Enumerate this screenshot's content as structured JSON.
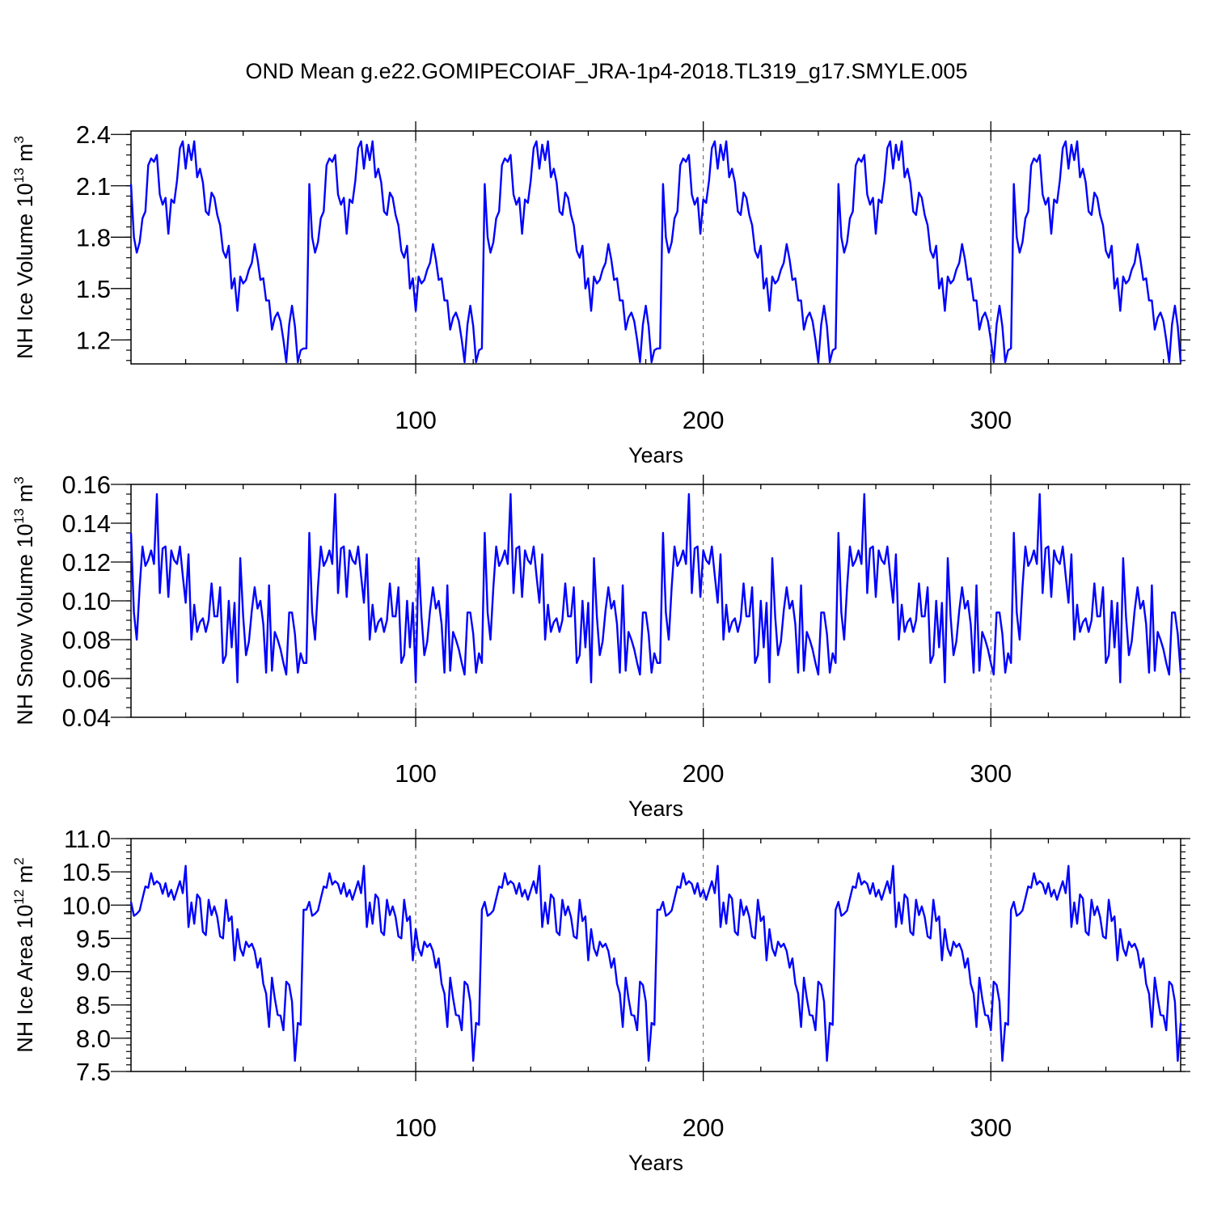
{
  "figure": {
    "title": "OND Mean g.e22.GOMIPECOIAF_JRA-1p4-2018.TL319_g17.SMYLE.005"
  },
  "chart_data": [
    {
      "type": "line",
      "id": "ice_volume",
      "title": "",
      "xlabel": "Years",
      "ylabel": {
        "main": "NH Ice Volume 10",
        "sup1": "13",
        "mid": " m",
        "sup2": "3"
      },
      "xlim": [
        1,
        366
      ],
      "ylim": [
        1.06,
        2.42
      ],
      "x_ticks": [
        100,
        200,
        300
      ],
      "x_minor_step": 20,
      "y_ticks": [
        1.2,
        1.5,
        1.8,
        2.1,
        2.4
      ],
      "y_tick_labels": [
        "1.2",
        "1.5",
        "1.8",
        "2.1",
        "2.4"
      ],
      "y_minor_step": 0.06,
      "grid": {
        "vertical_dashed_at": [
          100,
          200,
          300
        ]
      },
      "line_color": "#0000ff",
      "cycle_length": 61.4,
      "pattern": [
        2.11,
        1.8,
        1.71,
        1.77,
        1.91,
        1.95,
        2.22,
        2.26,
        2.24,
        2.28,
        2.05,
        1.99,
        2.03,
        1.82,
        2.02,
        2.0,
        2.13,
        2.32,
        2.36,
        2.2,
        2.34,
        2.25,
        2.36,
        2.15,
        2.2,
        2.12,
        1.95,
        1.93,
        2.06,
        2.03,
        1.93,
        1.87,
        1.72,
        1.68,
        1.75,
        1.5,
        1.56,
        1.37,
        1.57,
        1.53,
        1.55,
        1.61,
        1.65,
        1.76,
        1.67,
        1.55,
        1.56,
        1.43,
        1.43,
        1.26,
        1.33,
        1.36,
        1.31,
        1.2,
        1.07,
        1.29,
        1.4,
        1.28,
        1.07,
        1.14,
        1.15
      ]
    },
    {
      "type": "line",
      "id": "snow_volume",
      "title": "",
      "xlabel": "Years",
      "ylabel": {
        "main": "NH Snow Volume 10",
        "sup1": "13",
        "mid": " m",
        "sup2": "3"
      },
      "xlim": [
        1,
        366
      ],
      "ylim": [
        0.04,
        0.16
      ],
      "x_ticks": [
        100,
        200,
        300
      ],
      "x_minor_step": 20,
      "y_ticks": [
        0.04,
        0.06,
        0.08,
        0.1,
        0.12,
        0.14,
        0.16
      ],
      "y_tick_labels": [
        "0.04",
        "0.06",
        "0.08",
        "0.10",
        "0.12",
        "0.14",
        "0.16"
      ],
      "y_minor_step": 0.005,
      "grid": {
        "vertical_dashed_at": [
          100,
          200,
          300
        ]
      },
      "line_color": "#0000ff",
      "cycle_length": 61.4,
      "pattern": [
        0.135,
        0.094,
        0.08,
        0.107,
        0.128,
        0.118,
        0.121,
        0.126,
        0.119,
        0.155,
        0.104,
        0.127,
        0.128,
        0.102,
        0.126,
        0.121,
        0.119,
        0.128,
        0.113,
        0.099,
        0.124,
        0.08,
        0.098,
        0.084,
        0.089,
        0.091,
        0.084,
        0.09,
        0.109,
        0.092,
        0.092,
        0.107,
        0.068,
        0.072,
        0.1,
        0.076,
        0.099,
        0.058,
        0.122,
        0.092,
        0.072,
        0.079,
        0.095,
        0.107,
        0.096,
        0.1,
        0.088,
        0.063,
        0.108,
        0.064,
        0.084,
        0.08,
        0.075,
        0.068,
        0.062,
        0.094,
        0.094,
        0.083,
        0.063,
        0.073,
        0.068
      ]
    },
    {
      "type": "line",
      "id": "ice_area",
      "title": "",
      "xlabel": "Years",
      "ylabel": {
        "main": "NH Ice Area 10",
        "sup1": "12",
        "mid": " m",
        "sup2": "2"
      },
      "xlim": [
        1,
        366
      ],
      "ylim": [
        7.5,
        11.0
      ],
      "x_ticks": [
        100,
        200,
        300
      ],
      "x_minor_step": 20,
      "y_ticks": [
        7.5,
        8.0,
        8.5,
        9.0,
        9.5,
        10.0,
        10.5,
        11.0
      ],
      "y_tick_labels": [
        "7.5",
        "8.0",
        "8.5",
        "9.0",
        "9.5",
        "10.0",
        "10.5",
        "11.0"
      ],
      "y_minor_step": 0.1,
      "grid": {
        "vertical_dashed_at": [
          100,
          200,
          300
        ]
      },
      "line_color": "#0000ff",
      "cycle_length": 61.4,
      "pattern": [
        10.05,
        9.84,
        9.87,
        9.92,
        10.1,
        10.28,
        10.26,
        10.48,
        10.31,
        10.36,
        10.32,
        10.17,
        10.33,
        10.13,
        10.23,
        10.08,
        10.22,
        10.36,
        10.18,
        10.59,
        9.67,
        10.04,
        9.72,
        10.16,
        10.1,
        9.6,
        9.55,
        10.08,
        9.85,
        9.98,
        9.82,
        9.53,
        9.5,
        10.08,
        9.76,
        9.83,
        9.17,
        9.64,
        9.35,
        9.24,
        9.45,
        9.37,
        9.42,
        9.31,
        9.06,
        9.2,
        8.82,
        8.67,
        8.17,
        8.91,
        8.6,
        8.35,
        8.34,
        8.12,
        8.85,
        8.8,
        8.55,
        7.66,
        8.23,
        8.2,
        9.93
      ]
    }
  ]
}
